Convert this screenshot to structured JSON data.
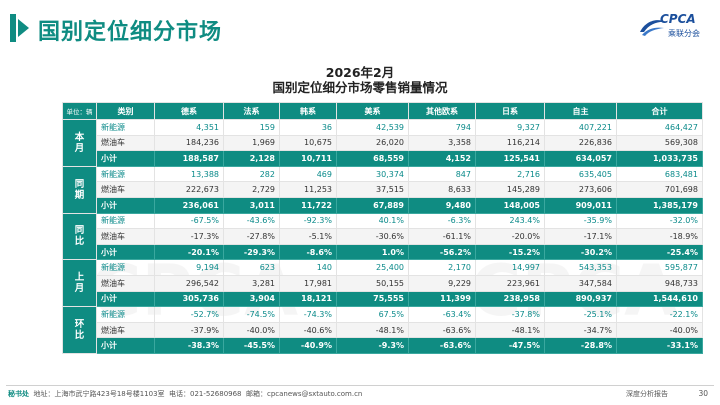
{
  "header": {
    "title": "国别定位细分市场"
  },
  "logo": {
    "main": "CPCA",
    "sub": "乘联分会"
  },
  "watermark": "CPCA",
  "report": {
    "title_line1": "2026年2月",
    "title_line2": "国别定位细分市场零售销量情况"
  },
  "table": {
    "unit": "单位：辆",
    "columns": [
      "类别",
      "德系",
      "法系",
      "韩系",
      "美系",
      "其他欧系",
      "日系",
      "自主",
      "合计"
    ],
    "groups": [
      {
        "label": "本月",
        "rows": [
          {
            "label": "新能源",
            "values": [
              "4,351",
              "159",
              "36",
              "42,539",
              "794",
              "9,327",
              "407,221",
              "464,427"
            ]
          },
          {
            "label": "燃油车",
            "values": [
              "184,236",
              "1,969",
              "10,675",
              "26,020",
              "3,358",
              "116,214",
              "226,836",
              "569,308"
            ]
          },
          {
            "label": "小计",
            "values": [
              "188,587",
              "2,128",
              "10,711",
              "68,559",
              "4,152",
              "125,541",
              "634,057",
              "1,033,735"
            ]
          }
        ]
      },
      {
        "label": "同期",
        "rows": [
          {
            "label": "新能源",
            "values": [
              "13,388",
              "282",
              "469",
              "30,374",
              "847",
              "2,716",
              "635,405",
              "683,481"
            ]
          },
          {
            "label": "燃油车",
            "values": [
              "222,673",
              "2,729",
              "11,253",
              "37,515",
              "8,633",
              "145,289",
              "273,606",
              "701,698"
            ]
          },
          {
            "label": "小计",
            "values": [
              "236,061",
              "3,011",
              "11,722",
              "67,889",
              "9,480",
              "148,005",
              "909,011",
              "1,385,179"
            ]
          }
        ]
      },
      {
        "label": "同比",
        "rows": [
          {
            "label": "新能源",
            "values": [
              "-67.5%",
              "-43.6%",
              "-92.3%",
              "40.1%",
              "-6.3%",
              "243.4%",
              "-35.9%",
              "-32.0%"
            ]
          },
          {
            "label": "燃油车",
            "values": [
              "-17.3%",
              "-27.8%",
              "-5.1%",
              "-30.6%",
              "-61.1%",
              "-20.0%",
              "-17.1%",
              "-18.9%"
            ]
          },
          {
            "label": "小计",
            "values": [
              "-20.1%",
              "-29.3%",
              "-8.6%",
              "1.0%",
              "-56.2%",
              "-15.2%",
              "-30.2%",
              "-25.4%"
            ]
          }
        ]
      },
      {
        "label": "上月",
        "rows": [
          {
            "label": "新能源",
            "values": [
              "9,194",
              "623",
              "140",
              "25,400",
              "2,170",
              "14,997",
              "543,353",
              "595,877"
            ]
          },
          {
            "label": "燃油车",
            "values": [
              "296,542",
              "3,281",
              "17,981",
              "50,155",
              "9,229",
              "223,961",
              "347,584",
              "948,733"
            ]
          },
          {
            "label": "小计",
            "values": [
              "305,736",
              "3,904",
              "18,121",
              "75,555",
              "11,399",
              "238,958",
              "890,937",
              "1,544,610"
            ]
          }
        ]
      },
      {
        "label": "环比",
        "rows": [
          {
            "label": "新能源",
            "values": [
              "-52.7%",
              "-74.5%",
              "-74.3%",
              "67.5%",
              "-63.4%",
              "-37.8%",
              "-25.1%",
              "-22.1%"
            ]
          },
          {
            "label": "燃油车",
            "values": [
              "-37.9%",
              "-40.0%",
              "-40.6%",
              "-48.1%",
              "-63.6%",
              "-48.1%",
              "-34.7%",
              "-40.0%"
            ]
          },
          {
            "label": "小计",
            "values": [
              "-38.3%",
              "-45.5%",
              "-40.9%",
              "-9.3%",
              "-63.6%",
              "-47.5%",
              "-28.8%",
              "-33.1%"
            ]
          }
        ]
      }
    ]
  },
  "footer": {
    "org_label": "秘书处",
    "address_label": "地址：",
    "address": "上海市武宁路423号18号楼1103室",
    "phone_label": "电话：",
    "phone": "021-52680968",
    "email_label": "邮箱：",
    "email": "cpcanews@sxtauto.com.cn",
    "report_type": "深度分析报告",
    "page_number": "30"
  },
  "colors": {
    "accent": "#0f8c82",
    "nev_text": "#0a8a8a",
    "logo_blue": "#1b4f9c"
  }
}
